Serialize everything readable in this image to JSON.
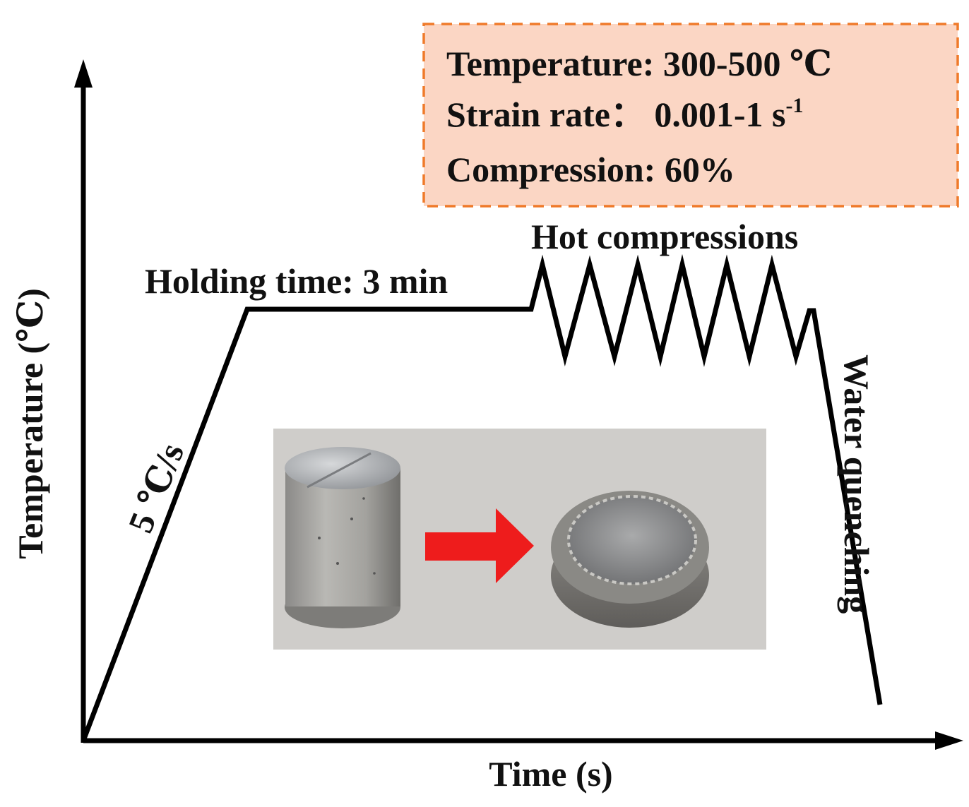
{
  "axes": {
    "x_label": "Time (s)",
    "y_label": "Temperature (℃)"
  },
  "process": {
    "heating_rate": "5 ℃/s",
    "holding": "Holding time: 3 min",
    "deformation": "Hot compressions",
    "cooling": "Water quenching"
  },
  "conditions": {
    "temperature": "Temperature:  300-500 ℃",
    "strain_rate_prefix": "Strain rate：  0.001-1 s",
    "strain_rate_exponent": "-1",
    "compression": "Compression:  60%"
  },
  "photo": {
    "content": "cylindrical specimen before and compressed specimen after hot compression",
    "arrow_color": "#ee1c1c"
  },
  "colors": {
    "line": "#000000",
    "box_fill": "#fbd6c4",
    "box_border": "#ef7a2a",
    "photo_background": "#cfcdca"
  }
}
